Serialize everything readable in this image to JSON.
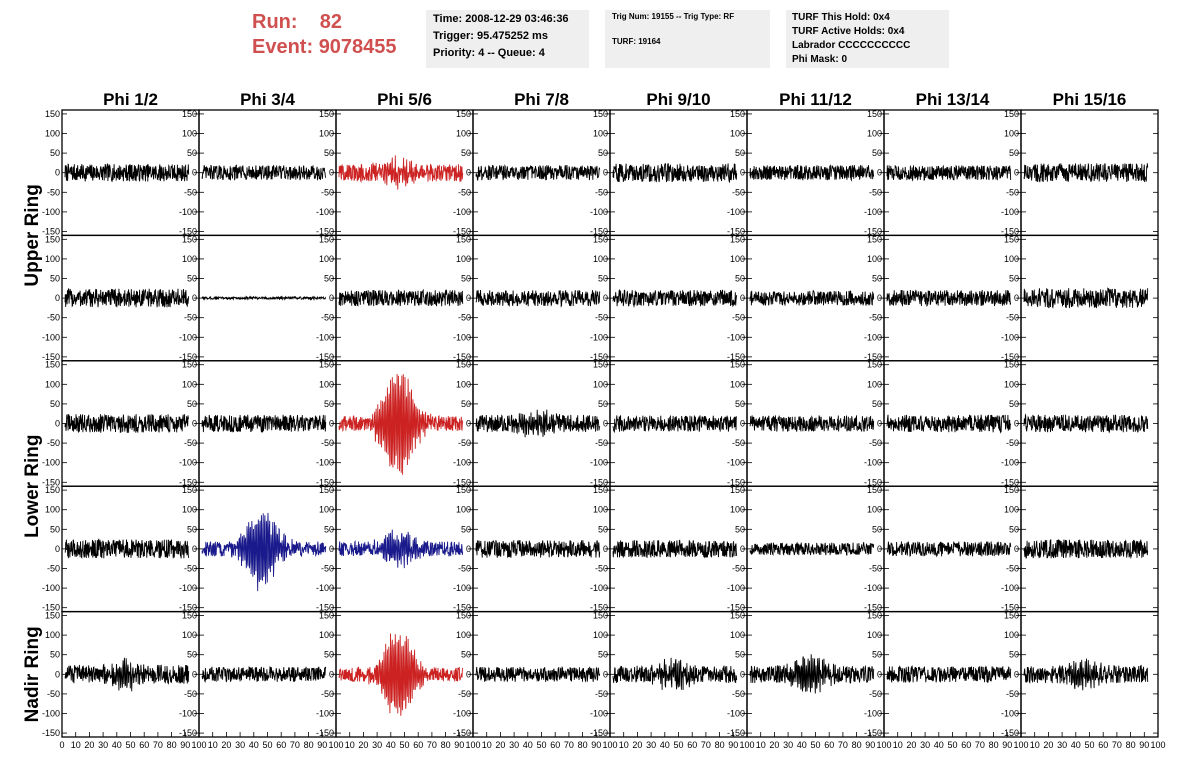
{
  "header": {
    "run_label": "Run:",
    "run_value": "82",
    "event_label": "Event:",
    "event_value": "9078455",
    "time": "Time: 2008-12-29 03:46:36",
    "trigger": "Trigger: 95.475252 ms",
    "priority": "Priority: 4 -- Queue: 4",
    "trig_num": "Trig Num: 19155 -- Trig Type: RF",
    "turf": "TURF: 19164",
    "turf_hold": "TURF This Hold: 0x4",
    "turf_active": "TURF Active Holds: 0x4",
    "labrador": "Labrador CCCCCCCCCC",
    "phi_mask": "Phi Mask: 0"
  },
  "chart_data": {
    "type": "line",
    "columns": [
      "Phi 1/2",
      "Phi 3/4",
      "Phi 5/6",
      "Phi 7/8",
      "Phi 9/10",
      "Phi 11/12",
      "Phi 13/14",
      "Phi 15/16"
    ],
    "row_groups": [
      {
        "label": "Upper Ring",
        "rows": [
          0,
          1
        ]
      },
      {
        "label": "Lower Ring",
        "rows": [
          2,
          3
        ]
      },
      {
        "label": "Nadir Ring",
        "rows": [
          4
        ]
      }
    ],
    "xlim": [
      0,
      100
    ],
    "x_tick_labels": [
      "0",
      "10",
      "20",
      "30",
      "40",
      "50",
      "60",
      "70",
      "80",
      "90",
      "100"
    ],
    "ylim": [
      -160,
      160
    ],
    "y_tick_labels": [
      "150",
      "100",
      "50",
      "0",
      "-50",
      "-100",
      "-150"
    ],
    "y_ticks": [
      150,
      100,
      50,
      0,
      -50,
      -100,
      -150
    ],
    "colors": {
      "normal": "#000000",
      "highlight_red": "#cc2222",
      "highlight_blue": "#1a1a8c"
    },
    "panels": [
      [
        {
          "amp": 14,
          "color": "normal"
        },
        {
          "amp": 12,
          "color": "normal"
        },
        {
          "amp": 14,
          "color": "red",
          "burst": 24
        },
        {
          "amp": 12,
          "color": "normal"
        },
        {
          "amp": 15,
          "color": "normal"
        },
        {
          "amp": 12,
          "color": "normal"
        },
        {
          "amp": 12,
          "color": "normal"
        },
        {
          "amp": 15,
          "color": "normal"
        }
      ],
      [
        {
          "amp": 15,
          "color": "normal"
        },
        {
          "amp": 2,
          "color": "normal"
        },
        {
          "amp": 13,
          "color": "normal"
        },
        {
          "amp": 13,
          "color": "normal"
        },
        {
          "amp": 13,
          "color": "normal"
        },
        {
          "amp": 12,
          "color": "normal"
        },
        {
          "amp": 13,
          "color": "normal"
        },
        {
          "amp": 16,
          "color": "normal"
        }
      ],
      [
        {
          "amp": 15,
          "color": "normal"
        },
        {
          "amp": 14,
          "color": "normal"
        },
        {
          "amp": 12,
          "color": "red",
          "burst": 140
        },
        {
          "amp": 14,
          "color": "normal",
          "burst": 25
        },
        {
          "amp": 13,
          "color": "normal"
        },
        {
          "amp": 13,
          "color": "normal"
        },
        {
          "amp": 14,
          "color": "normal"
        },
        {
          "amp": 14,
          "color": "normal"
        }
      ],
      [
        {
          "amp": 15,
          "color": "normal"
        },
        {
          "amp": 12,
          "color": "blue",
          "burst": 100
        },
        {
          "amp": 12,
          "color": "blue",
          "burst": 45
        },
        {
          "amp": 14,
          "color": "normal"
        },
        {
          "amp": 14,
          "color": "normal"
        },
        {
          "amp": 10,
          "color": "normal"
        },
        {
          "amp": 12,
          "color": "normal"
        },
        {
          "amp": 15,
          "color": "normal"
        }
      ],
      [
        {
          "amp": 15,
          "color": "normal",
          "burst": 25
        },
        {
          "amp": 12,
          "color": "normal"
        },
        {
          "amp": 12,
          "color": "red",
          "burst": 115
        },
        {
          "amp": 12,
          "color": "normal"
        },
        {
          "amp": 14,
          "color": "normal",
          "burst": 30
        },
        {
          "amp": 14,
          "color": "normal",
          "burst": 40
        },
        {
          "amp": 13,
          "color": "normal"
        },
        {
          "amp": 14,
          "color": "normal",
          "burst": 25
        }
      ]
    ]
  }
}
